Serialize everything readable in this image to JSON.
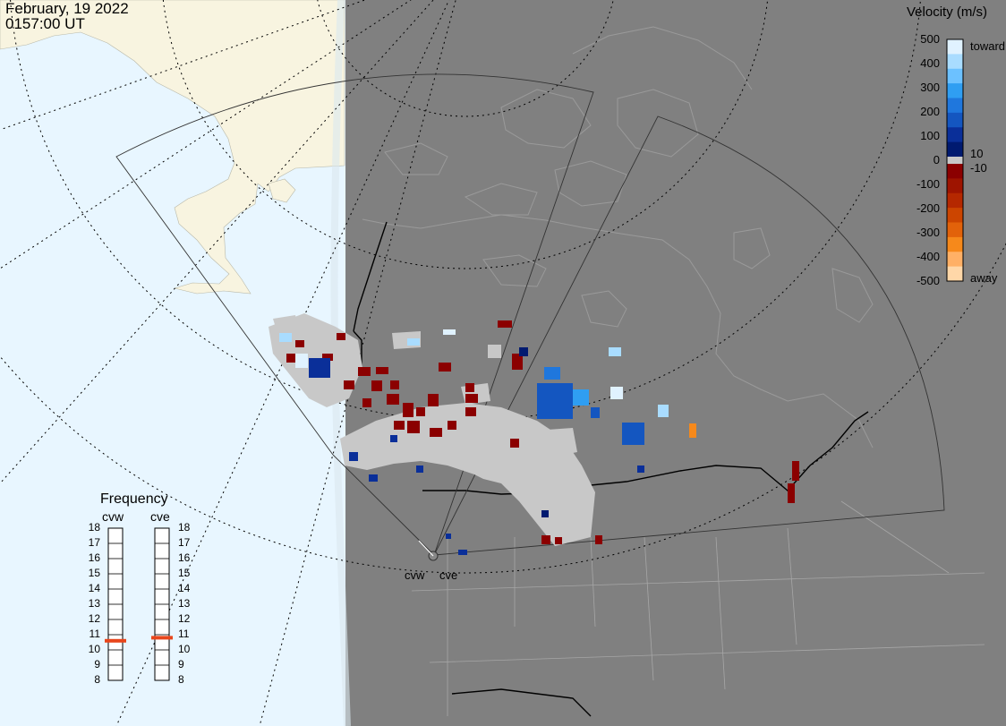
{
  "header": {
    "date": "February, 19 2022",
    "time": "0157:00 UT"
  },
  "velocity_scale": {
    "title": "Velocity (m/s)",
    "tick_values": [
      "500",
      "400",
      "300",
      "200",
      "100",
      "0",
      "-100",
      "-200",
      "-300",
      "-400",
      "-500"
    ],
    "threshold_labels": [
      "10",
      "-10"
    ],
    "end_labels": {
      "top": "toward",
      "bottom": "away"
    },
    "colors": [
      "#e0f2ff",
      "#a9dcff",
      "#6cc1ff",
      "#2f9ef2",
      "#1f77dd",
      "#1456c0",
      "#0a2f99",
      "#001a70",
      "#8b0000",
      "#9e1400",
      "#b52800",
      "#cc4500",
      "#e2620a",
      "#f6891b",
      "#ffb066",
      "#ffd7a8"
    ]
  },
  "frequency": {
    "title": "Frequency",
    "radars": [
      "cvw",
      "cve"
    ],
    "ticks": [
      "18",
      "17",
      "16",
      "15",
      "14",
      "13",
      "12",
      "11",
      "10",
      "9",
      "8"
    ],
    "values_mhz": [
      10.6,
      10.8
    ],
    "marker_color": "#e8461c"
  },
  "radar_sites": [
    "cvw",
    "cve"
  ],
  "colors": {
    "ocean": "#e8f6ff",
    "land_day": "#f8f4e0",
    "night": "#808080",
    "ground_scatter": "#c8c8c8"
  }
}
